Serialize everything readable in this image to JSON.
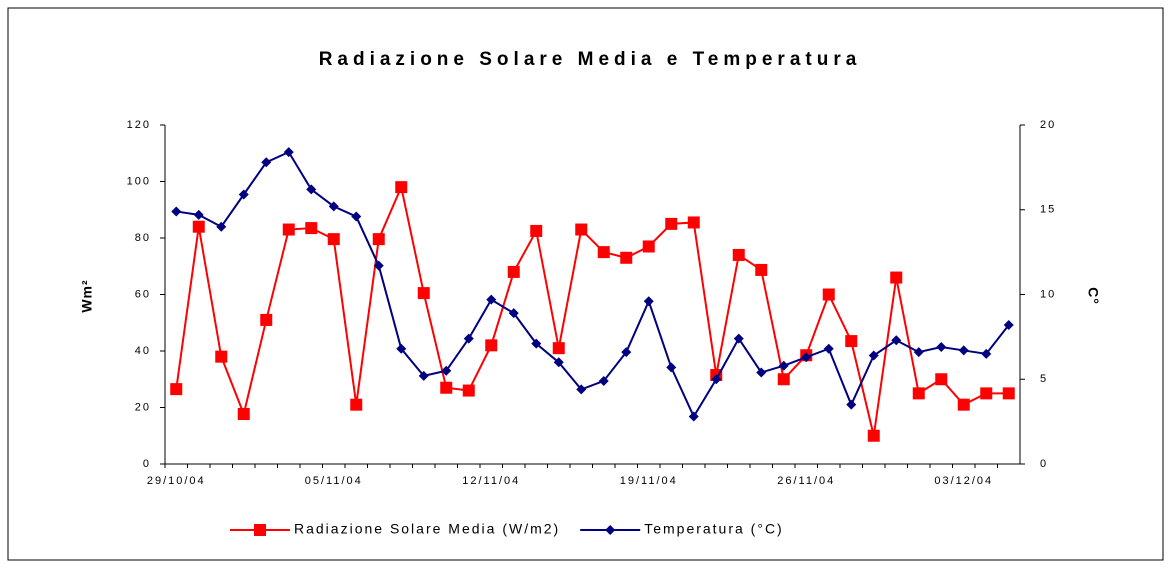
{
  "chart_data": {
    "type": "line",
    "title": "Radiazione Solare Media e Temperatura",
    "y_label": "Wm²",
    "y2_label": "C°",
    "categories": [
      "29/10/04",
      null,
      null,
      null,
      null,
      null,
      null,
      "05/11/04",
      null,
      null,
      null,
      null,
      null,
      null,
      "12/11/04",
      null,
      null,
      null,
      null,
      null,
      null,
      "19/11/04",
      null,
      null,
      null,
      null,
      null,
      null,
      "26/11/04",
      null,
      null,
      null,
      null,
      null,
      null,
      "03/12/04",
      null,
      null
    ],
    "ylim": [
      0,
      120
    ],
    "yticks": [
      0,
      20,
      40,
      60,
      80,
      100,
      120
    ],
    "y2lim": [
      0,
      20
    ],
    "y2ticks": [
      0,
      5,
      10,
      15,
      20
    ],
    "legend": "bottom",
    "series": [
      {
        "name": "Radiazione Solare Media (W/m2)",
        "color": "#ff0000",
        "marker": "square",
        "values": [
          26.5,
          84,
          38,
          17.7,
          51,
          83,
          83.5,
          79.6,
          21,
          79.6,
          98,
          60.5,
          27,
          26,
          42,
          68,
          82.5,
          41,
          83,
          75,
          73,
          77,
          85,
          85.5,
          31.5,
          74,
          68.7,
          30,
          38.5,
          60,
          43.5,
          10,
          66,
          25,
          30,
          21,
          25,
          25
        ]
      },
      {
        "name": "Temperatura (°C)",
        "color": "#000080",
        "marker": "diamond",
        "axis": "y2",
        "values": [
          14.9,
          14.7,
          14.0,
          15.9,
          17.8,
          18.4,
          16.2,
          15.2,
          14.6,
          11.7,
          6.8,
          5.2,
          5.5,
          7.4,
          9.7,
          8.9,
          7.1,
          6.0,
          4.4,
          4.9,
          6.6,
          9.6,
          5.7,
          2.8,
          5.0,
          7.4,
          5.4,
          5.8,
          6.3,
          6.8,
          3.5,
          6.4,
          7.3,
          6.6,
          6.9,
          6.7,
          6.5,
          8.2
        ]
      }
    ]
  }
}
